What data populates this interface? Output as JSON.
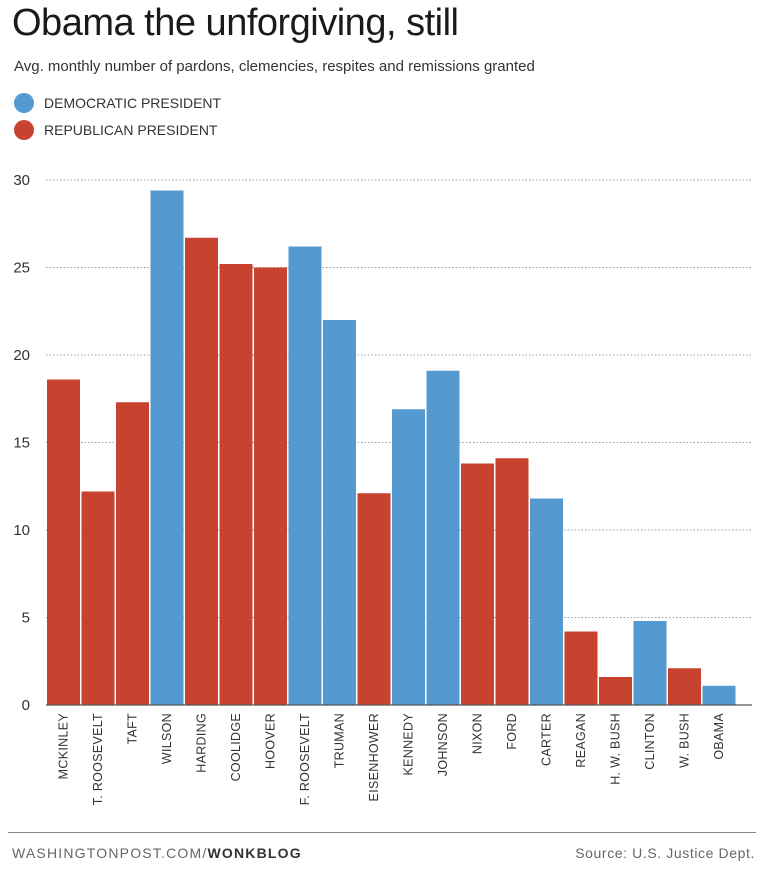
{
  "header": {
    "title": "Obama the unforgiving, still",
    "subtitle": "Avg. monthly number of pardons, clemencies, respites and remissions granted"
  },
  "legend": {
    "democratic_label": "DEMOCRATIC PRESIDENT",
    "republican_label": "REPUBLICAN PRESIDENT"
  },
  "colors": {
    "democratic": "#5499cf",
    "republican": "#c8432f",
    "grid": "#9aa0a6",
    "axis": "#555555"
  },
  "footer": {
    "site": "WASHINGTONPOST.COM/",
    "section": "WONKBLOG",
    "source": "Source: U.S. Justice Dept."
  },
  "chart_data": {
    "type": "bar",
    "title": "Obama the unforgiving, still",
    "ylabel": "Avg. monthly number of pardons, clemencies, respites and remissions granted",
    "xlabel": "",
    "ylim": [
      0,
      30
    ],
    "yticks": [
      0,
      5,
      10,
      15,
      20,
      25,
      30
    ],
    "grid": true,
    "categories": [
      "MCKINLEY",
      "T. ROOSEVELT",
      "TAFT",
      "WILSON",
      "HARDING",
      "COOLIDGE",
      "HOOVER",
      "F. ROOSEVELT",
      "TRUMAN",
      "EISENHOWER",
      "KENNEDY",
      "JOHNSON",
      "NIXON",
      "FORD",
      "CARTER",
      "REAGAN",
      "H. W. BUSH",
      "CLINTON",
      "W. BUSH",
      "OBAMA"
    ],
    "values": [
      18.6,
      12.2,
      17.3,
      29.4,
      26.7,
      25.2,
      25.0,
      26.2,
      22.0,
      12.1,
      16.9,
      19.1,
      13.8,
      14.1,
      11.8,
      4.2,
      1.6,
      4.8,
      2.1,
      1.1
    ],
    "party": [
      "R",
      "R",
      "R",
      "D",
      "R",
      "R",
      "R",
      "D",
      "D",
      "R",
      "D",
      "D",
      "R",
      "R",
      "D",
      "R",
      "R",
      "D",
      "R",
      "D"
    ]
  }
}
